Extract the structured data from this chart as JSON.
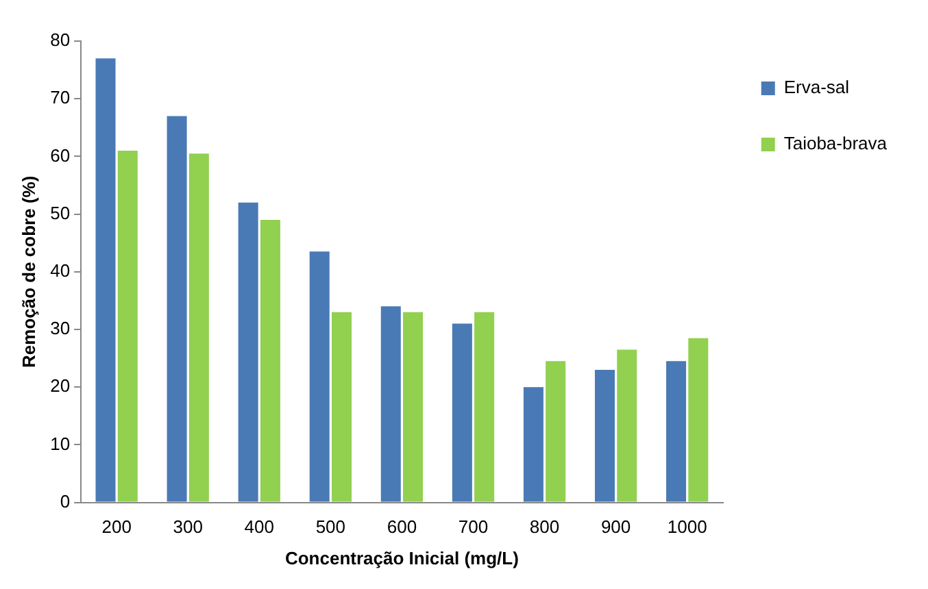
{
  "chart_data": {
    "type": "bar",
    "xlabel": "Concentração Inicial (mg/L)",
    "ylabel": "Remoção de cobre (%)",
    "categories": [
      "200",
      "300",
      "400",
      "500",
      "600",
      "700",
      "800",
      "900",
      "1000"
    ],
    "series": [
      {
        "name": "Erva-sal",
        "color": "#4a7ab5",
        "values": [
          77,
          67,
          52,
          43.5,
          34,
          31,
          20,
          23,
          24.5
        ]
      },
      {
        "name": "Taioba-brava",
        "color": "#92d050",
        "values": [
          61,
          60.5,
          49,
          33,
          33,
          33,
          24.5,
          26.5,
          28.5
        ]
      }
    ],
    "ylim": [
      0,
      80
    ],
    "yticks": [
      0,
      10,
      20,
      30,
      40,
      50,
      60,
      70,
      80
    ],
    "grid": false,
    "legend": "top right"
  }
}
